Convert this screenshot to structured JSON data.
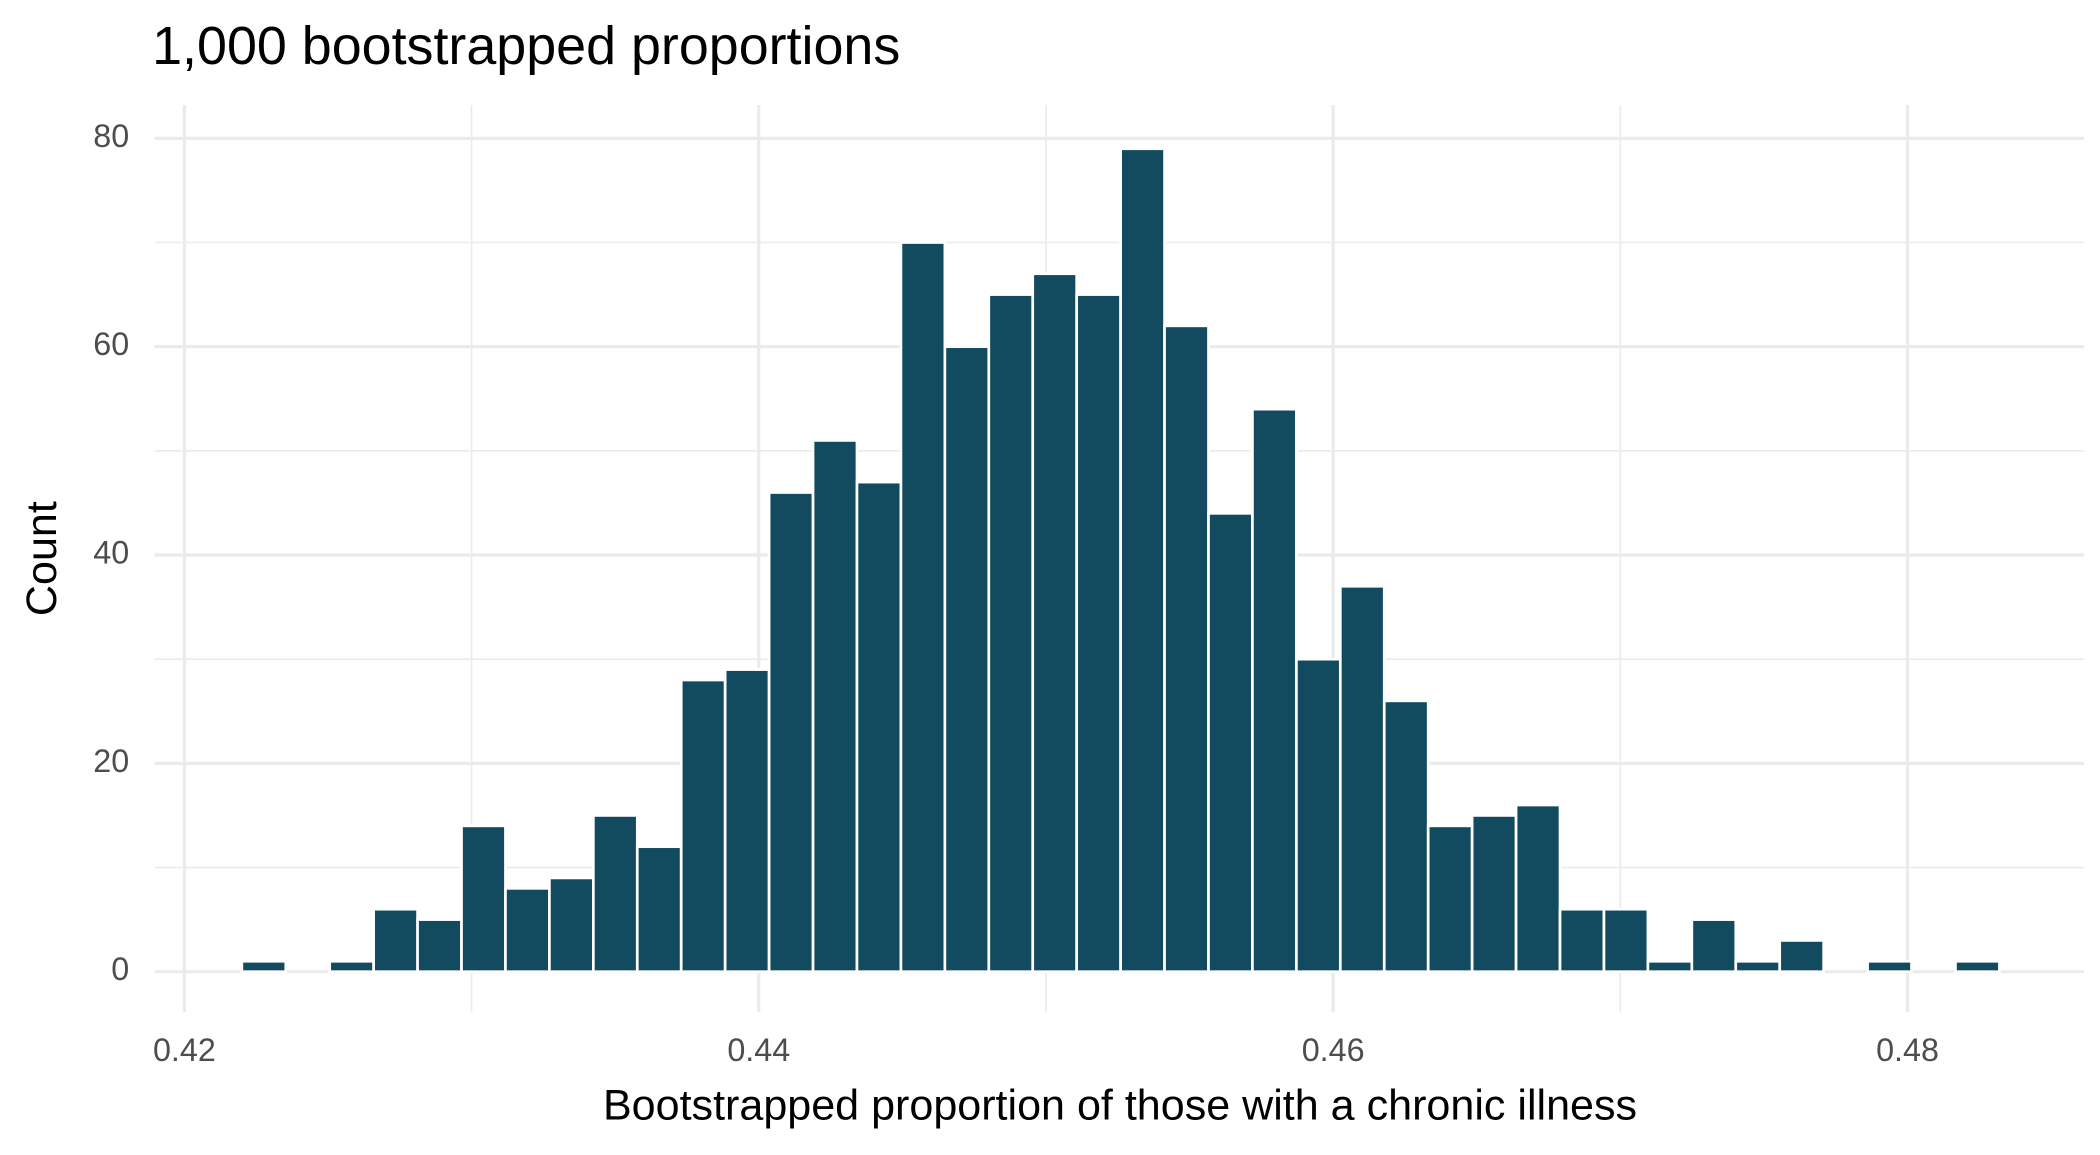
{
  "chart_data": {
    "type": "histogram",
    "title": "1,000 bootstrapped proportions",
    "x_label": "Bootstrapped proportion of those with a chronic illness",
    "y_label": "Count",
    "bins": [
      0.422,
      0.42353,
      0.42506,
      0.42659,
      0.42812,
      0.42965,
      0.43118,
      0.43271,
      0.43424,
      0.43577,
      0.4373,
      0.43883,
      0.44036,
      0.44189,
      0.44342,
      0.44495,
      0.44648,
      0.44801,
      0.44954,
      0.45107,
      0.4526,
      0.45413,
      0.45566,
      0.45719,
      0.45872,
      0.46025,
      0.46178,
      0.46331,
      0.46484,
      0.46637,
      0.4679,
      0.46943,
      0.47096,
      0.47249,
      0.47402,
      0.47555,
      0.47708,
      0.47861,
      0.48014,
      0.48167,
      0.4832
    ],
    "values": [
      1,
      0,
      1,
      6,
      5,
      14,
      8,
      9,
      15,
      12,
      28,
      29,
      46,
      51,
      47,
      70,
      60,
      65,
      67,
      65,
      79,
      62,
      44,
      54,
      30,
      37,
      26,
      14,
      15,
      16,
      6,
      6,
      1,
      5,
      1,
      3,
      0,
      1,
      0,
      1
    ],
    "color": "#124b5f",
    "xlim": [
      0.41897,
      0.48614
    ],
    "ylim": [
      -3.9,
      83.2
    ],
    "xticks": [
      0.42,
      0.44,
      0.46,
      0.48
    ],
    "yticks": [
      0,
      20,
      40,
      60,
      80
    ],
    "grid": true
  }
}
